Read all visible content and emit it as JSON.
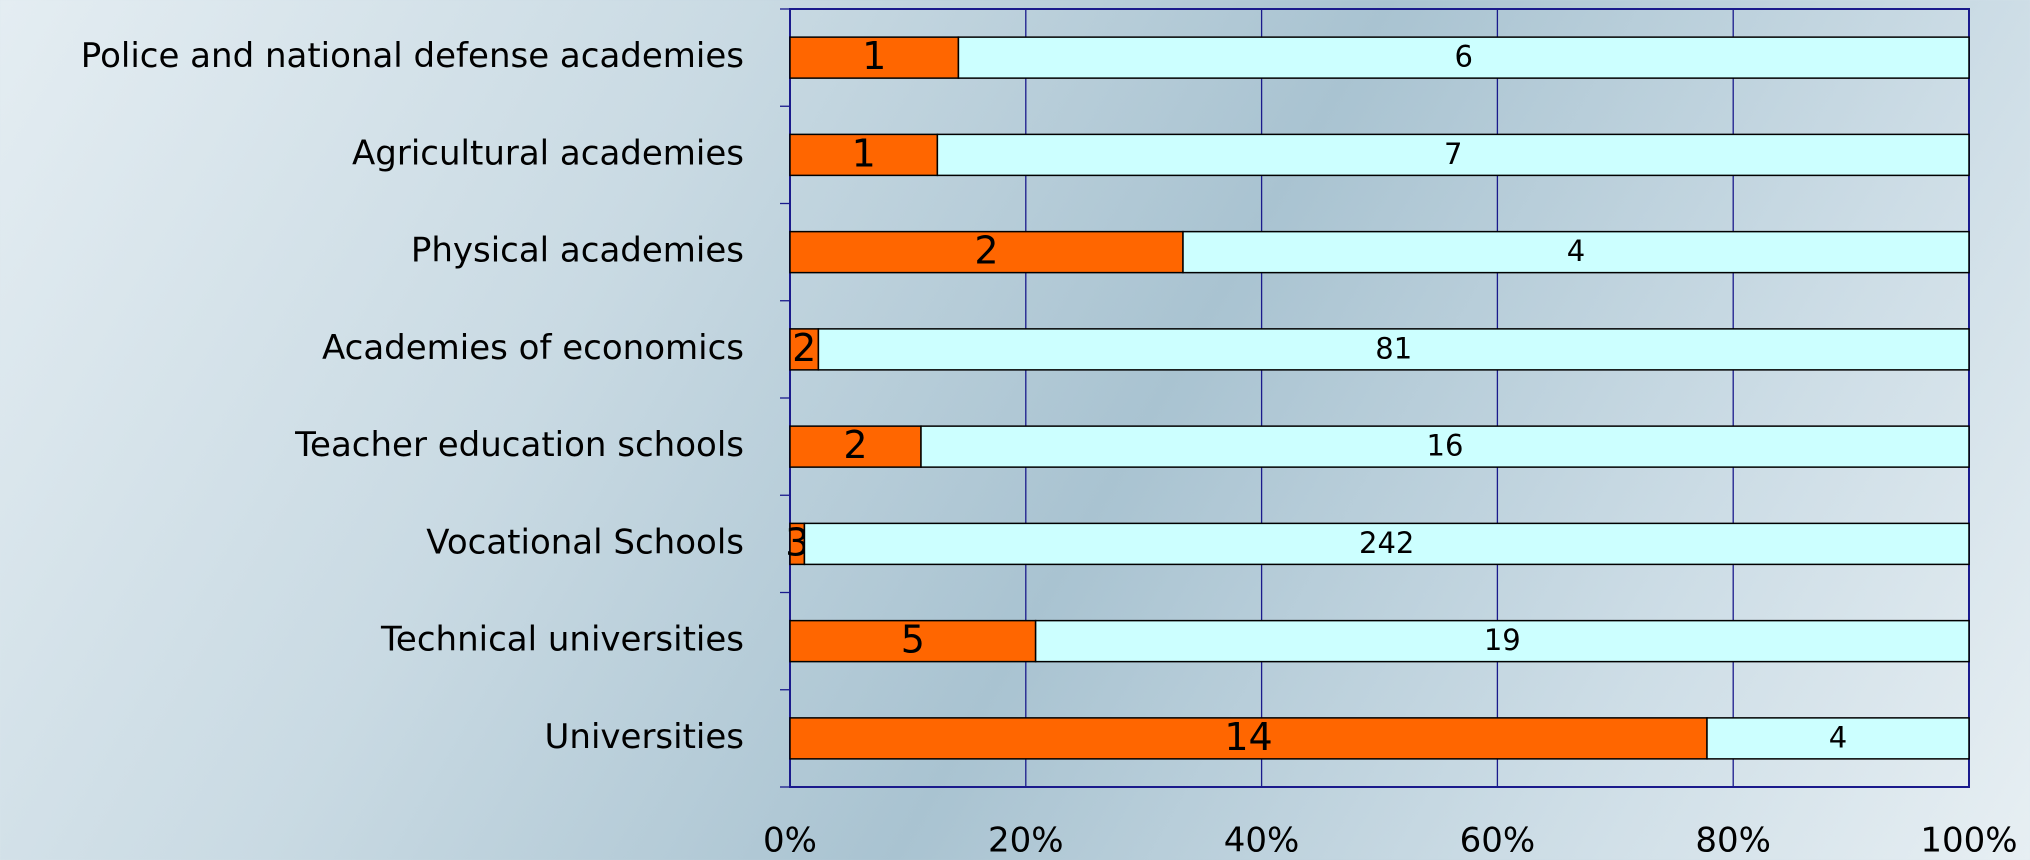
{
  "chart_data": {
    "type": "stacked_percent_barh",
    "categories": [
      "Police and national defense academies",
      "Agricultural academies",
      "Physical academies",
      "Academies of economics",
      "Teacher education schools",
      "Vocational Schools",
      "Technical universities",
      "Universities"
    ],
    "series": [
      {
        "color": "#ff6600",
        "values": [
          1,
          1,
          2,
          2,
          2,
          3,
          5,
          14
        ]
      },
      {
        "color": "#ccffff",
        "values": [
          6,
          7,
          4,
          81,
          16,
          242,
          19,
          4
        ]
      }
    ],
    "xlim": [
      0,
      100
    ],
    "xticks": [
      {
        "value": 0,
        "label": "0%"
      },
      {
        "value": 20,
        "label": "20%"
      },
      {
        "value": 40,
        "label": "40%"
      },
      {
        "value": 60,
        "label": "60%"
      },
      {
        "value": 80,
        "label": "80%"
      },
      {
        "value": 100,
        "label": "100%"
      }
    ],
    "grid": true
  }
}
